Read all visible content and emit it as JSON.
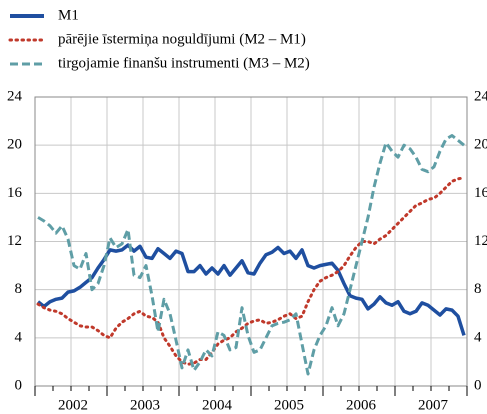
{
  "chart_data": {
    "type": "line",
    "categories": [
      null,
      null,
      null,
      null,
      null,
      null,
      "2002",
      null,
      null,
      null,
      null,
      null,
      null,
      null,
      null,
      null,
      null,
      null,
      "2003",
      null,
      null,
      null,
      null,
      null,
      null,
      null,
      null,
      null,
      null,
      null,
      "2004",
      null,
      null,
      null,
      null,
      null,
      null,
      null,
      null,
      null,
      null,
      null,
      "2005",
      null,
      null,
      null,
      null,
      null,
      null,
      null,
      null,
      null,
      null,
      null,
      "2006",
      null,
      null,
      null,
      null,
      null,
      null,
      null,
      null,
      null,
      null,
      null,
      "2007",
      null,
      null,
      null,
      null,
      null
    ],
    "series": [
      {
        "name": "M1",
        "color": "#1f4fa0",
        "style": "solid",
        "values": [
          7.0,
          6.6,
          7.0,
          7.2,
          7.3,
          7.8,
          7.9,
          8.2,
          8.6,
          9.0,
          9.8,
          10.5,
          11.3,
          11.2,
          11.3,
          11.7,
          11.2,
          11.6,
          10.7,
          10.6,
          11.4,
          11.0,
          10.6,
          11.2,
          11.0,
          9.5,
          9.5,
          10.0,
          9.3,
          9.8,
          9.3,
          10.0,
          9.2,
          9.8,
          10.4,
          9.4,
          9.3,
          10.2,
          10.9,
          11.1,
          11.5,
          11.0,
          11.2,
          10.6,
          11.3,
          10.0,
          9.8,
          10.0,
          10.1,
          10.2,
          9.6,
          8.5,
          7.5,
          7.3,
          7.2,
          6.4,
          6.8,
          7.4,
          6.9,
          6.7,
          7.0,
          6.2,
          6.0,
          6.2,
          6.9,
          6.7,
          6.3,
          5.9,
          6.4,
          6.3,
          5.8,
          4.2
        ]
      },
      {
        "name": "pārējie īstermiņa noguldījumi (M2 – M1)",
        "color": "#c0392b",
        "style": "dotted",
        "values": [
          6.8,
          6.5,
          6.3,
          6.2,
          6.0,
          5.6,
          5.3,
          5.0,
          4.9,
          4.9,
          4.6,
          4.2,
          4.0,
          4.8,
          5.3,
          5.6,
          6.0,
          6.2,
          5.8,
          5.7,
          5.3,
          4.0,
          3.3,
          2.5,
          2.0,
          1.8,
          1.9,
          2.2,
          2.2,
          2.8,
          3.5,
          3.8,
          4.0,
          4.5,
          4.8,
          5.2,
          5.4,
          5.5,
          5.2,
          5.3,
          5.5,
          5.8,
          6.0,
          5.6,
          5.8,
          7.0,
          8.0,
          8.7,
          9.0,
          9.2,
          9.5,
          10.0,
          10.8,
          11.5,
          12.0,
          12.0,
          11.8,
          12.2,
          12.5,
          13.0,
          13.5,
          14.0,
          14.5,
          15.0,
          15.2,
          15.5,
          15.6,
          16.0,
          16.5,
          17.0,
          17.2,
          17.3
        ]
      },
      {
        "name": "tirgojamie finanšu instrumenti (M3 – M2)",
        "color": "#5f9ea6",
        "style": "dashed",
        "values": [
          14.0,
          13.7,
          13.3,
          12.7,
          13.3,
          12.2,
          10.0,
          9.7,
          11.0,
          8.0,
          8.5,
          10.0,
          12.3,
          11.5,
          11.8,
          13.0,
          9.2,
          9.0,
          10.0,
          7.5,
          4.5,
          7.2,
          6.0,
          3.8,
          1.5,
          3.0,
          1.3,
          2.0,
          3.0,
          2.5,
          4.5,
          4.2,
          3.0,
          3.2,
          6.5,
          4.2,
          2.8,
          3.0,
          4.0,
          5.0,
          5.2,
          5.3,
          5.5,
          6.0,
          3.5,
          1.0,
          3.0,
          4.2,
          5.0,
          6.5,
          5.0,
          6.0,
          8.0,
          10.0,
          12.0,
          14.0,
          16.5,
          18.5,
          20.2,
          19.5,
          19.0,
          20.0,
          19.7,
          19.0,
          18.0,
          17.8,
          18.2,
          19.5,
          20.5,
          20.8,
          20.4,
          20.0
        ]
      }
    ],
    "ylim": [
      0,
      24
    ],
    "yticks": [
      0,
      4,
      8,
      12,
      16,
      20,
      24
    ],
    "y2lim": [
      0,
      24
    ],
    "y2ticks": [
      0,
      4,
      8,
      12,
      16,
      20,
      24
    ],
    "grid": true
  }
}
